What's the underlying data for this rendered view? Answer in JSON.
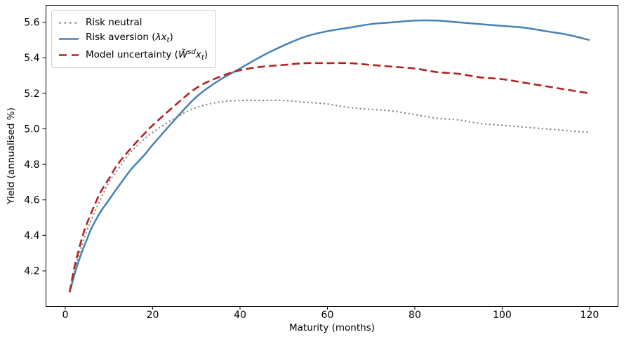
{
  "chart_data": {
    "type": "line",
    "title": "",
    "xlabel": "Maturity (months)",
    "ylabel": "Yield (annualised %)",
    "xlim": [
      -4.5,
      126.6
    ],
    "ylim": [
      4.0,
      5.698
    ],
    "xticks": [
      0,
      20,
      40,
      60,
      80,
      100,
      120
    ],
    "yticks": [
      4.2,
      4.4,
      4.6,
      4.8,
      5.0,
      5.2,
      5.4,
      5.6
    ],
    "grid": false,
    "legend_position": "upper left",
    "x": [
      1,
      2,
      3,
      4,
      5,
      6,
      8,
      10,
      12,
      15,
      18,
      20,
      25,
      30,
      35,
      40,
      45,
      50,
      55,
      60,
      65,
      70,
      75,
      80,
      85,
      90,
      95,
      100,
      105,
      110,
      115,
      120
    ],
    "series": [
      {
        "name": "Risk neutral",
        "color": "#808080",
        "style": "dotted",
        "values": [
          4.08,
          4.19,
          4.28,
          4.36,
          4.43,
          4.49,
          4.6,
          4.7,
          4.77,
          4.87,
          4.94,
          4.98,
          5.06,
          5.12,
          5.15,
          5.16,
          5.16,
          5.16,
          5.15,
          5.14,
          5.12,
          5.11,
          5.1,
          5.08,
          5.06,
          5.05,
          5.03,
          5.02,
          5.01,
          5.0,
          4.99,
          4.98
        ]
      },
      {
        "name": "Risk aversion (λxₜ)",
        "color": "#4682b4",
        "style": "solid",
        "values": [
          4.08,
          4.17,
          4.25,
          4.32,
          4.38,
          4.44,
          4.53,
          4.6,
          4.67,
          4.77,
          4.85,
          4.91,
          5.05,
          5.18,
          5.27,
          5.34,
          5.41,
          5.47,
          5.52,
          5.55,
          5.57,
          5.59,
          5.6,
          5.61,
          5.61,
          5.6,
          5.59,
          5.58,
          5.57,
          5.55,
          5.53,
          5.5
        ]
      },
      {
        "name": "Model uncertainty (W̃ˢᵈxₜ)",
        "color": "#b22222",
        "style": "dashed",
        "values": [
          4.08,
          4.21,
          4.31,
          4.4,
          4.47,
          4.53,
          4.64,
          4.72,
          4.8,
          4.89,
          4.97,
          5.02,
          5.13,
          5.23,
          5.29,
          5.33,
          5.35,
          5.36,
          5.37,
          5.37,
          5.37,
          5.36,
          5.35,
          5.34,
          5.32,
          5.31,
          5.29,
          5.28,
          5.26,
          5.24,
          5.22,
          5.2
        ]
      }
    ]
  },
  "legend": {
    "items": [
      {
        "parts": {
          "p0": "Risk neutral"
        }
      },
      {
        "parts": {
          "p0": "Risk aversion (",
          "p1": "λx",
          "p2": "t",
          "p3": ")"
        }
      },
      {
        "parts": {
          "p0": "Model uncertainty (",
          "p1": "W̃",
          "p2": "sd",
          "p3": "x",
          "p4": "t",
          "p5": ")"
        }
      }
    ]
  }
}
